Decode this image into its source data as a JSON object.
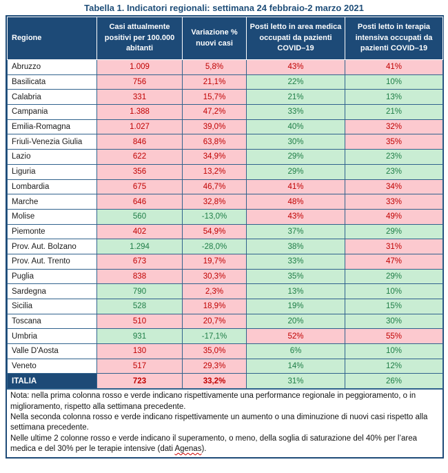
{
  "title": "Tabella 1. Indicatori regionali: settimana 24 febbraio-2 marzo 2021",
  "colors": {
    "header_bg": "#1D4A77",
    "header_text": "#FFFFFF",
    "worsening_bg": "#FCC9CF",
    "worsening_text": "#C00000",
    "improving_bg": "#C9EDD3",
    "improving_text": "#1E7D46",
    "border_inner": "#2F618C",
    "border_outer": "#1D4A77",
    "title_text": "#1F4E79"
  },
  "table": {
    "columns": [
      "Regione",
      "Casi attualmente positivi per 100.000  abitanti",
      "Variazione % nuovi casi",
      "Posti letto in area medica occupati da pazienti COVID–19",
      "Posti letto in terapia intensiva occupati da pazienti COVID–19"
    ],
    "rows": [
      {
        "regione": "Abruzzo",
        "cells": [
          [
            "1.009",
            "red"
          ],
          [
            "5,8%",
            "red"
          ],
          [
            "43%",
            "red"
          ],
          [
            "41%",
            "red"
          ]
        ]
      },
      {
        "regione": "Basilicata",
        "cells": [
          [
            "756",
            "red"
          ],
          [
            "21,1%",
            "red"
          ],
          [
            "22%",
            "green"
          ],
          [
            "10%",
            "green"
          ]
        ]
      },
      {
        "regione": "Calabria",
        "cells": [
          [
            "331",
            "red"
          ],
          [
            "15,7%",
            "red"
          ],
          [
            "21%",
            "green"
          ],
          [
            "13%",
            "green"
          ]
        ]
      },
      {
        "regione": "Campania",
        "cells": [
          [
            "1.388",
            "red"
          ],
          [
            "47,2%",
            "red"
          ],
          [
            "33%",
            "green"
          ],
          [
            "21%",
            "green"
          ]
        ]
      },
      {
        "regione": "Emilia-Romagna",
        "cells": [
          [
            "1.027",
            "red"
          ],
          [
            "39,0%",
            "red"
          ],
          [
            "40%",
            "green"
          ],
          [
            "32%",
            "red"
          ]
        ]
      },
      {
        "regione": "Friuli-Venezia Giulia",
        "cells": [
          [
            "846",
            "red"
          ],
          [
            "63,8%",
            "red"
          ],
          [
            "30%",
            "green"
          ],
          [
            "35%",
            "red"
          ]
        ]
      },
      {
        "regione": "Lazio",
        "cells": [
          [
            "622",
            "red"
          ],
          [
            "34,9%",
            "red"
          ],
          [
            "29%",
            "green"
          ],
          [
            "23%",
            "green"
          ]
        ]
      },
      {
        "regione": "Liguria",
        "cells": [
          [
            "356",
            "red"
          ],
          [
            "13,2%",
            "red"
          ],
          [
            "29%",
            "green"
          ],
          [
            "23%",
            "green"
          ]
        ]
      },
      {
        "regione": "Lombardia",
        "cells": [
          [
            "675",
            "red"
          ],
          [
            "46,7%",
            "red"
          ],
          [
            "41%",
            "red"
          ],
          [
            "34%",
            "red"
          ]
        ]
      },
      {
        "regione": "Marche",
        "cells": [
          [
            "646",
            "red"
          ],
          [
            "32,8%",
            "red"
          ],
          [
            "48%",
            "red"
          ],
          [
            "33%",
            "red"
          ]
        ]
      },
      {
        "regione": "Molise",
        "cells": [
          [
            "560",
            "green"
          ],
          [
            "-13,0%",
            "green"
          ],
          [
            "43%",
            "red"
          ],
          [
            "49%",
            "red"
          ]
        ]
      },
      {
        "regione": "Piemonte",
        "cells": [
          [
            "402",
            "red"
          ],
          [
            "54,9%",
            "red"
          ],
          [
            "37%",
            "green"
          ],
          [
            "29%",
            "green"
          ]
        ]
      },
      {
        "regione": "Prov. Aut. Bolzano",
        "cells": [
          [
            "1.294",
            "green"
          ],
          [
            "-28,0%",
            "green"
          ],
          [
            "38%",
            "green"
          ],
          [
            "31%",
            "red"
          ]
        ]
      },
      {
        "regione": "Prov. Aut. Trento",
        "cells": [
          [
            "673",
            "red"
          ],
          [
            "19,7%",
            "red"
          ],
          [
            "33%",
            "green"
          ],
          [
            "47%",
            "red"
          ]
        ]
      },
      {
        "regione": "Puglia",
        "cells": [
          [
            "838",
            "red"
          ],
          [
            "30,3%",
            "red"
          ],
          [
            "35%",
            "green"
          ],
          [
            "29%",
            "green"
          ]
        ]
      },
      {
        "regione": "Sardegna",
        "cells": [
          [
            "790",
            "green"
          ],
          [
            "2,3%",
            "red"
          ],
          [
            "13%",
            "green"
          ],
          [
            "10%",
            "green"
          ]
        ]
      },
      {
        "regione": "Sicilia",
        "cells": [
          [
            "528",
            "green"
          ],
          [
            "18,9%",
            "red"
          ],
          [
            "19%",
            "green"
          ],
          [
            "15%",
            "green"
          ]
        ]
      },
      {
        "regione": "Toscana",
        "cells": [
          [
            "510",
            "red"
          ],
          [
            "20,7%",
            "red"
          ],
          [
            "20%",
            "green"
          ],
          [
            "30%",
            "green"
          ]
        ]
      },
      {
        "regione": "Umbria",
        "cells": [
          [
            "931",
            "green"
          ],
          [
            "-17,1%",
            "green"
          ],
          [
            "52%",
            "red"
          ],
          [
            "55%",
            "red"
          ]
        ]
      },
      {
        "regione": "Valle D'Aosta",
        "cells": [
          [
            "130",
            "red"
          ],
          [
            "35,0%",
            "red"
          ],
          [
            "6%",
            "green"
          ],
          [
            "10%",
            "green"
          ]
        ]
      },
      {
        "regione": "Veneto",
        "cells": [
          [
            "517",
            "red"
          ],
          [
            "29,3%",
            "red"
          ],
          [
            "14%",
            "green"
          ],
          [
            "12%",
            "green"
          ]
        ]
      }
    ],
    "total_row": {
      "regione": "ITALIA",
      "cells": [
        [
          "723",
          "red",
          true
        ],
        [
          "33,2%",
          "red",
          true
        ],
        [
          "31%",
          "green",
          false
        ],
        [
          "26%",
          "green",
          false
        ]
      ]
    }
  },
  "note": {
    "line1": "Nota: nella prima colonna rosso e verde indicano rispettivamente una performance regionale in peggioramento, o in miglioramento, rispetto alla settimana precedente.",
    "line2": "Nella seconda colonna rosso e verde indicano rispettivamente un aumento o una diminuzione di nuovi casi rispetto alla settimana precedente.",
    "line3_pre": "Nelle ultime 2 colonne rosso e verde indicano il superamento, o meno, della soglia di saturazione del 40% per l’area medica e del 30% per le terapie intensive (dati ",
    "line3_word": "Agenas",
    "line3_post": ")."
  }
}
